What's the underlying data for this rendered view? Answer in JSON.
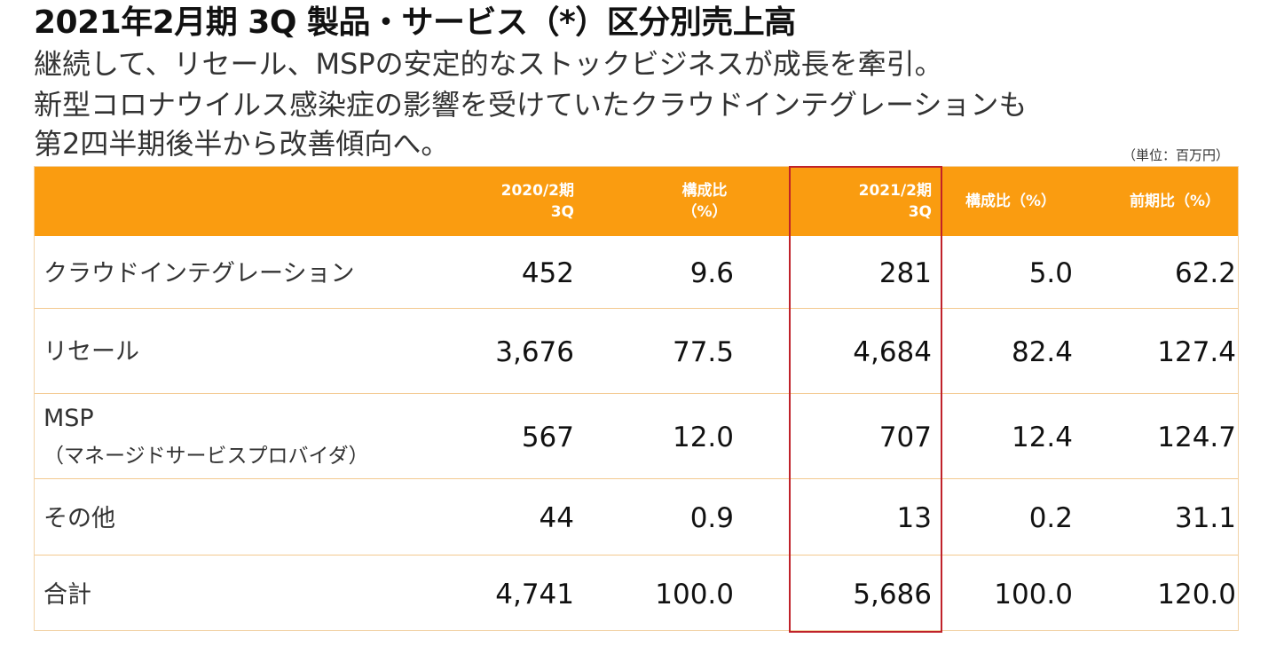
{
  "title": "2021年2月期 3Q 製品・サービス（*）区分別売上高",
  "subtitle": [
    "継続して、リセール、MSPの安定的なストックビジネスが成長を牽引。",
    "新型コロナウイルス感染症の影響を受けていたクラウドインテグレーションも",
    "第2四半期後半から改善傾向へ。"
  ],
  "unit": "（単位：百万円）",
  "header": {
    "col1": [
      "2020/2期",
      "3Q"
    ],
    "col2": [
      "構成比",
      "（%）"
    ],
    "col3": [
      "2021/2期",
      "3Q"
    ],
    "col4": "構成比（%）",
    "col5": "前期比（%）"
  },
  "rows": [
    {
      "label": "クラウドインテグレーション",
      "sublabel": "",
      "v1": "452",
      "v2": "9.6",
      "v3": "281",
      "v4": "5.0",
      "v5": "62.2"
    },
    {
      "label": "リセール",
      "sublabel": "",
      "v1": "3,676",
      "v2": "77.5",
      "v3": "4,684",
      "v4": "82.4",
      "v5": "127.4"
    },
    {
      "label": "MSP",
      "sublabel": "（マネージドサービスプロバイダ）",
      "v1": "567",
      "v2": "12.0",
      "v3": "707",
      "v4": "12.4",
      "v5": "124.7"
    },
    {
      "label": "その他",
      "sublabel": "",
      "v1": "44",
      "v2": "0.9",
      "v3": "13",
      "v4": "0.2",
      "v5": "31.1"
    },
    {
      "label": "合計",
      "sublabel": "",
      "v1": "4,741",
      "v2": "100.0",
      "v3": "5,686",
      "v4": "100.0",
      "v5": "120.0"
    }
  ],
  "colors": {
    "header_bg": "#fa9c10",
    "highlight_border": "#c0222a"
  }
}
